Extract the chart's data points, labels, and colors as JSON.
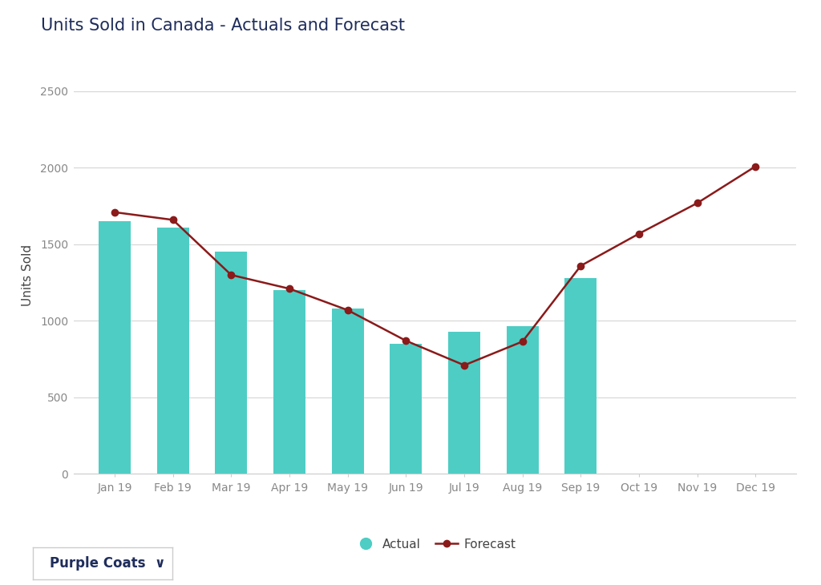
{
  "title": "Units Sold in Canada - Actuals and Forecast",
  "ylabel": "Units Sold",
  "background_color": "#ffffff",
  "plot_bg_color": "#ffffff",
  "months": [
    "Jan 19",
    "Feb 19",
    "Mar 19",
    "Apr 19",
    "May 19",
    "Jun 19",
    "Jul 19",
    "Aug 19",
    "Sep 19",
    "Oct 19",
    "Nov 19",
    "Dec 19"
  ],
  "actual_values": [
    1650,
    1610,
    1450,
    1200,
    1080,
    850,
    930,
    965,
    1280,
    null,
    null,
    null
  ],
  "forecast_values": [
    1710,
    1660,
    1300,
    1210,
    1070,
    870,
    710,
    865,
    1360,
    1570,
    1770,
    2010
  ],
  "bar_color": "#4ecdc4",
  "line_color": "#8B1A1A",
  "line_width": 1.8,
  "marker": "o",
  "marker_size": 6,
  "ylim": [
    0,
    2600
  ],
  "yticks": [
    0,
    500,
    1000,
    1500,
    2000,
    2500
  ],
  "grid_color": "#d5d5d5",
  "title_fontsize": 15,
  "axis_label_fontsize": 11,
  "tick_fontsize": 10,
  "legend_fontsize": 11,
  "title_color": "#1f2d5c",
  "axis_label_color": "#444444",
  "tick_color": "#888888",
  "bar_width": 0.55,
  "footer_text": "Purple Coats",
  "footer_fontsize": 12,
  "footer_text_color": "#1f2d5c"
}
